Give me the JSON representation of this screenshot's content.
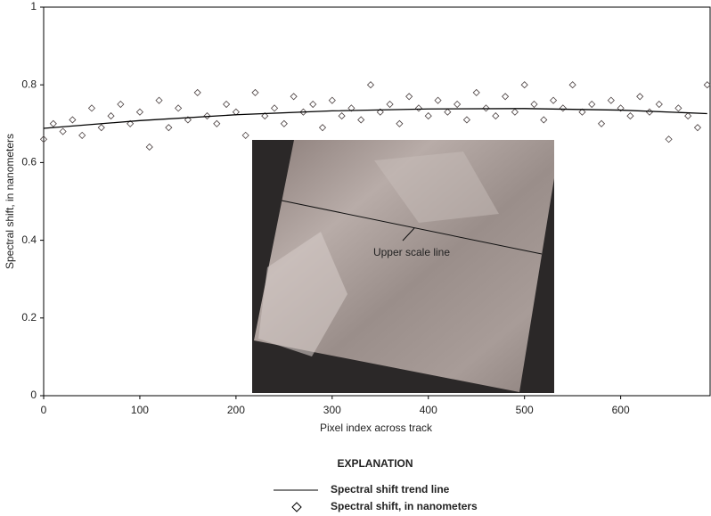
{
  "chart_data": {
    "type": "scatter",
    "x_label": "Pixel index across track",
    "y_label": "Spectral shift, in nanometers",
    "xlim": [
      0,
      693
    ],
    "xticks": [
      0,
      100,
      200,
      300,
      400,
      500,
      600
    ],
    "ylim": [
      0,
      1
    ],
    "yticks": [
      0,
      0.2,
      0.4,
      0.6,
      0.8,
      1
    ],
    "legend_title": "EXPLANATION",
    "annotation": "Upper scale line",
    "series": [
      {
        "name": "Spectral shift trend line",
        "kind": "line",
        "color": "#000000",
        "x": [
          0,
          100,
          200,
          300,
          400,
          500,
          600,
          690
        ],
        "values": [
          0.688,
          0.708,
          0.723,
          0.733,
          0.738,
          0.739,
          0.735,
          0.726
        ]
      },
      {
        "name": "Spectral shift, in nanometers",
        "kind": "marker",
        "color": "#4a4040",
        "x": [
          0,
          10,
          20,
          30,
          40,
          50,
          60,
          70,
          80,
          90,
          100,
          110,
          120,
          130,
          140,
          150,
          160,
          170,
          180,
          190,
          200,
          210,
          220,
          230,
          240,
          250,
          260,
          270,
          280,
          290,
          300,
          310,
          320,
          330,
          340,
          350,
          360,
          370,
          380,
          390,
          400,
          410,
          420,
          430,
          440,
          450,
          460,
          470,
          480,
          490,
          500,
          510,
          520,
          530,
          540,
          550,
          560,
          570,
          580,
          590,
          600,
          610,
          620,
          630,
          640,
          650,
          660,
          670,
          680,
          690
        ],
        "values": [
          0.66,
          0.7,
          0.68,
          0.71,
          0.67,
          0.74,
          0.69,
          0.72,
          0.75,
          0.7,
          0.73,
          0.64,
          0.76,
          0.69,
          0.74,
          0.71,
          0.78,
          0.72,
          0.7,
          0.75,
          0.73,
          0.67,
          0.78,
          0.72,
          0.74,
          0.7,
          0.77,
          0.73,
          0.75,
          0.69,
          0.76,
          0.72,
          0.74,
          0.71,
          0.8,
          0.73,
          0.75,
          0.7,
          0.77,
          0.74,
          0.72,
          0.76,
          0.73,
          0.75,
          0.71,
          0.78,
          0.74,
          0.72,
          0.77,
          0.73,
          0.8,
          0.75,
          0.71,
          0.76,
          0.74,
          0.8,
          0.73,
          0.75,
          0.7,
          0.76,
          0.74,
          0.72,
          0.77,
          0.73,
          0.75,
          0.66,
          0.74,
          0.72,
          0.69,
          0.8
        ]
      }
    ]
  }
}
